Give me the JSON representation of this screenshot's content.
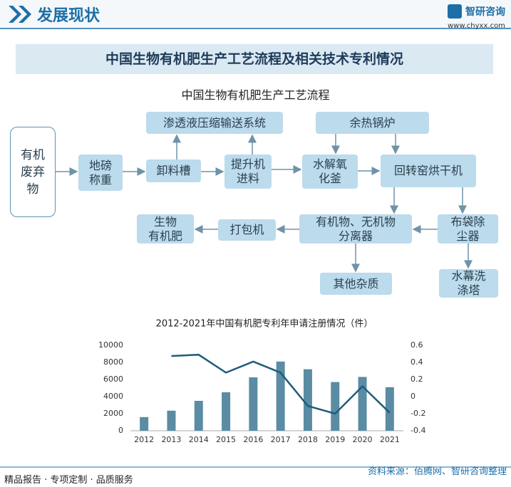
{
  "header": {
    "title": "发展现状",
    "brand": "智研咨询",
    "url": "www.chyxx.com"
  },
  "banner": "中国生物有机肥生产工艺流程及相关技术专利情况",
  "diagram": {
    "title": "中国生物有机肥生产工艺流程",
    "nodes": [
      {
        "lines": [
          "有机",
          "废弃",
          "物"
        ]
      },
      {
        "lines": [
          "地磅",
          "称重"
        ]
      },
      {
        "lines": [
          "卸料槽"
        ]
      },
      {
        "lines": [
          "提升机",
          "进料"
        ]
      },
      {
        "lines": [
          "水解氧",
          "化釜"
        ]
      },
      {
        "lines": [
          "回转窑烘干机"
        ]
      },
      {
        "lines": [
          "渗透液压缩输送系统"
        ]
      },
      {
        "lines": [
          "余热锅炉"
        ]
      },
      {
        "lines": [
          "布袋除",
          "尘器"
        ]
      },
      {
        "lines": [
          "有机物、无机物",
          "分离器"
        ]
      },
      {
        "lines": [
          "打包机"
        ]
      },
      {
        "lines": [
          "生物",
          "有机肥"
        ]
      },
      {
        "lines": [
          "其他杂质"
        ]
      },
      {
        "lines": [
          "水幕洗",
          "涤塔"
        ]
      }
    ]
  },
  "chart_data": {
    "type": "bar",
    "title": "2012-2021年中国有机肥专利年申请注册情况（件）",
    "categories": [
      "2012",
      "2013",
      "2014",
      "2015",
      "2016",
      "2017",
      "2018",
      "2019",
      "2020",
      "2021"
    ],
    "series": [
      {
        "color": "#5a8ca3",
        "values": [
          1600,
          2350,
          3500,
          4500,
          6250,
          8100,
          7200,
          5700,
          6300,
          5100
        ]
      },
      {
        "type": "line",
        "axis": "y2",
        "color": "#1f5c7a",
        "values": [
          null,
          0.475,
          0.49,
          0.28,
          0.41,
          0.28,
          -0.11,
          -0.2,
          0.12,
          -0.19
        ]
      }
    ],
    "ylim": [
      0,
      10000
    ],
    "yticks": [
      0,
      2000,
      4000,
      6000,
      8000,
      10000
    ],
    "y2lim": [
      -0.4,
      0.6
    ],
    "y2ticks": [
      -0.4,
      -0.2,
      0,
      0.2,
      0.4,
      0.6
    ]
  },
  "footer": {
    "left": "精品报告 · 专项定制 · 品质服务",
    "source": "资料来源：佰腾网、智研咨询整理"
  }
}
